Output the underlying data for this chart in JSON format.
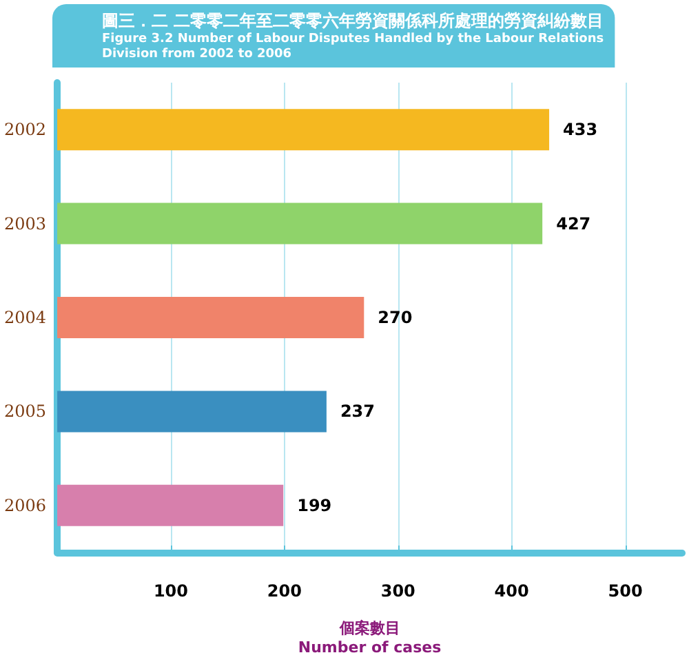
{
  "chart_data": {
    "type": "bar",
    "orientation": "horizontal",
    "title": "圖三．二 二零零二年至二零零六年勞資關係科所處理的勞資糾紛數目",
    "subtitle": "Figure 3.2 Number of Labour Disputes Handled by the Labour Relations\nDivision from 2002 to 2006",
    "xlabel": "個案數目\nNumber of cases",
    "categories": [
      "2002",
      "2003",
      "2004",
      "2005",
      "2006"
    ],
    "values": [
      433,
      427,
      270,
      237,
      199
    ],
    "colors": [
      "#f5b820",
      "#8fd36a",
      "#f0836a",
      "#3a8fc0",
      "#d77fac"
    ],
    "xlim": [
      0,
      550
    ],
    "xticks": [
      {
        "value": 0,
        "label": null
      },
      100,
      200,
      300,
      400,
      500
    ],
    "grid": "x",
    "data_labels": true
  }
}
